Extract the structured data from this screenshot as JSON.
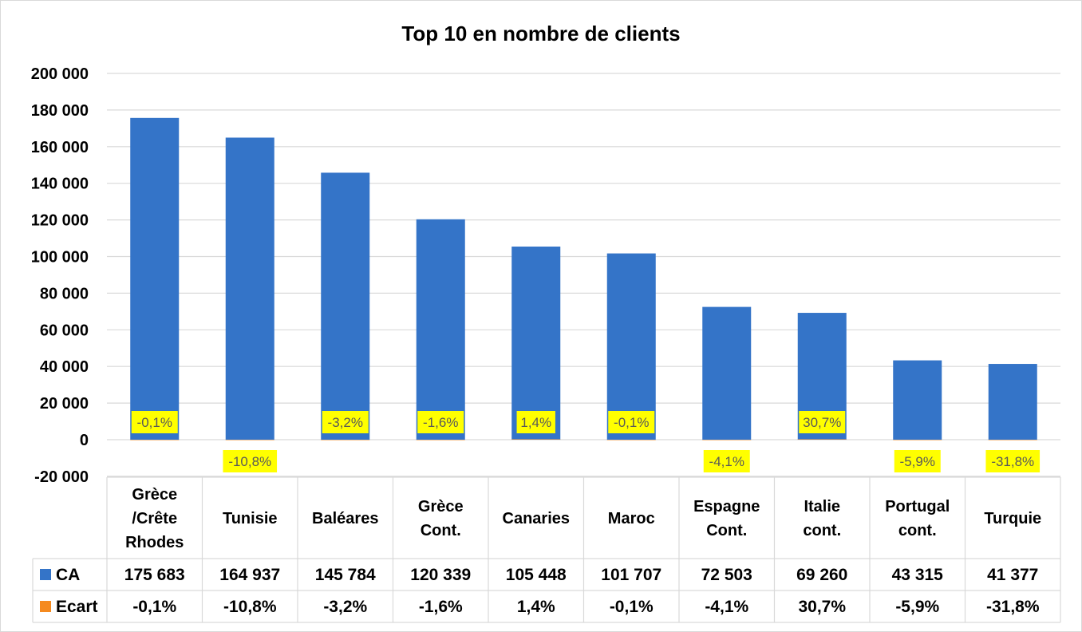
{
  "chart_data": {
    "type": "bar",
    "title": "Top 10 en nombre de clients",
    "categories": [
      [
        "Grèce",
        "/Crête",
        "Rhodes"
      ],
      [
        "Tunisie"
      ],
      [
        "Baléares"
      ],
      [
        "Grèce",
        "Cont."
      ],
      [
        "Canaries"
      ],
      [
        "Maroc"
      ],
      [
        "Espagne",
        "Cont."
      ],
      [
        "Italie",
        "cont."
      ],
      [
        "Portugal",
        "cont."
      ],
      [
        "Turquie"
      ]
    ],
    "series": [
      {
        "name": "CA",
        "color": "#3474c8",
        "values": [
          175683,
          164937,
          145784,
          120339,
          105448,
          101707,
          72503,
          69260,
          43315,
          41377
        ],
        "table_text": [
          "175 683",
          "164 937",
          "145 784",
          "120 339",
          "105 448",
          "101 707",
          "72 503",
          "69 260",
          "43 315",
          "41 377"
        ]
      },
      {
        "name": "Ecart",
        "color": "#f58a1f",
        "values": [
          -0.1,
          -10.8,
          -3.2,
          -1.6,
          1.4,
          -0.1,
          -4.1,
          30.7,
          -5.9,
          -31.8
        ],
        "table_text": [
          "-0,1%",
          "-10,8%",
          "-3,2%",
          "-1,6%",
          "1,4%",
          "-0,1%",
          "-4,1%",
          "30,7%",
          "-5,9%",
          "-31,8%"
        ]
      }
    ],
    "ylim": [
      -20000,
      200000
    ],
    "yticks": [
      -20000,
      0,
      20000,
      40000,
      60000,
      80000,
      100000,
      120000,
      140000,
      160000,
      180000,
      200000
    ],
    "ytick_labels": [
      "-20 000",
      "0",
      "20 000",
      "40 000",
      "60 000",
      "80 000",
      "100 000",
      "120 000",
      "140 000",
      "160 000",
      "180 000",
      "200 000"
    ],
    "data_labels": [
      "-0,1%",
      "-10,8%",
      "-3,2%",
      "-1,6%",
      "1,4%",
      "-0,1%",
      "-4,1%",
      "30,7%",
      "-5,9%",
      "-31,8%"
    ],
    "data_label_highlight": "#ffff00",
    "grid": true,
    "legend": "data-table"
  }
}
